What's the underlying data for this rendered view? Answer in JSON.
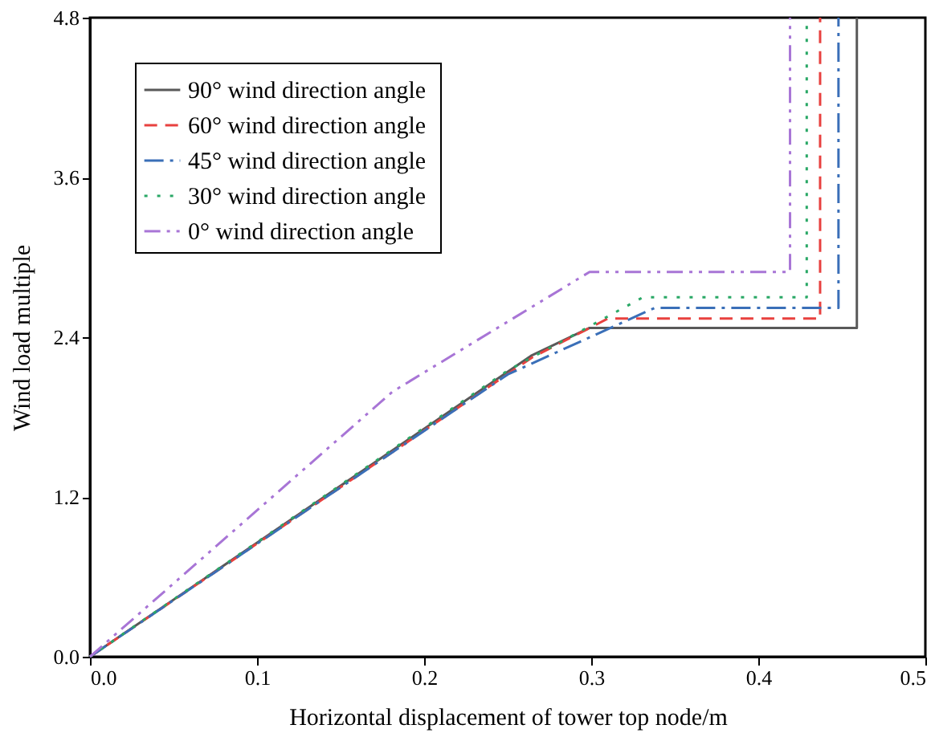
{
  "chart_data": {
    "type": "line",
    "xlabel": "Horizontal displacement of tower top node/m",
    "ylabel": "Wind load multiple",
    "xlim": [
      0,
      0.5
    ],
    "ylim": [
      0,
      4.8
    ],
    "xticks": [
      {
        "value": 0,
        "label": "0.0"
      },
      {
        "value": 0.1,
        "label": "0.1"
      },
      {
        "value": 0.2,
        "label": "0.2"
      },
      {
        "value": 0.3,
        "label": "0.3"
      },
      {
        "value": 0.4,
        "label": "0.4"
      },
      {
        "value": 0.5,
        "label": "0.5"
      }
    ],
    "yticks": [
      {
        "value": 0,
        "label": "0.0"
      },
      {
        "value": 1.2,
        "label": "1.2"
      },
      {
        "value": 2.4,
        "label": "2.4"
      },
      {
        "value": 3.6,
        "label": "3.6"
      },
      {
        "value": 4.8,
        "label": "4.8"
      }
    ],
    "grid": false,
    "legend": "top left",
    "marker": "none",
    "series": [
      {
        "name": "90°  wind direction angle",
        "color": "#595959",
        "line_style": "solid",
        "x": [
          0,
          0.264,
          0.299,
          0.459,
          0.459
        ],
        "values": [
          0,
          2.26,
          2.47,
          2.47,
          4.8
        ]
      },
      {
        "name": "60°  wind direction angle",
        "color": "#e8413f",
        "line_style": "dashed",
        "x": [
          0,
          0.265,
          0.31,
          0.437,
          0.437
        ],
        "values": [
          0,
          2.25,
          2.54,
          2.54,
          4.8
        ]
      },
      {
        "name": "45°  wind direction angle",
        "color": "#3a6fb8",
        "line_style": "dashdot",
        "x": [
          0,
          0.25,
          0.338,
          0.448,
          0.448
        ],
        "values": [
          0,
          2.12,
          2.62,
          2.62,
          4.8
        ]
      },
      {
        "name": "30°  wind direction angle",
        "color": "#2aa866",
        "line_style": "dotted",
        "x": [
          0,
          0.25,
          0.29,
          0.331,
          0.429,
          0.429
        ],
        "values": [
          0,
          2.15,
          2.42,
          2.7,
          2.7,
          4.8
        ]
      },
      {
        "name": " 0°  wind direction angle",
        "color": "#a875d6",
        "line_style": "dashdotdot",
        "x": [
          0,
          0.181,
          0.299,
          0.419,
          0.419
        ],
        "values": [
          0,
          1.99,
          2.89,
          2.89,
          4.8
        ]
      }
    ]
  }
}
